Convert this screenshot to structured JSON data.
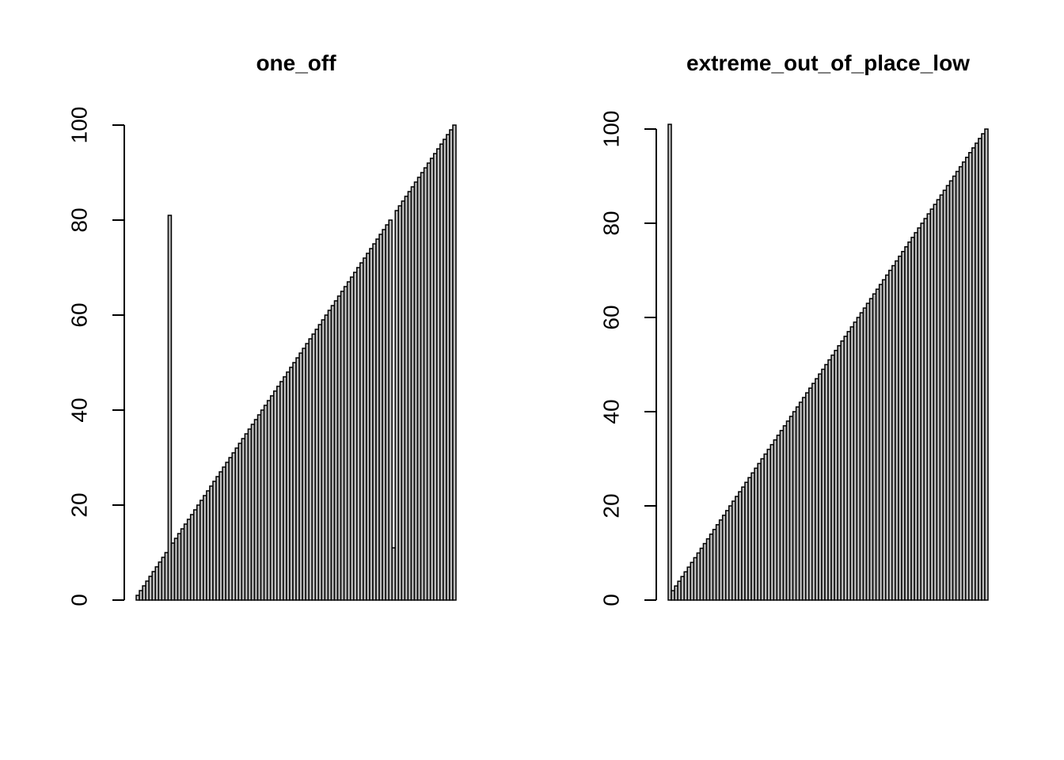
{
  "chart_data": [
    {
      "type": "bar",
      "title": "one_off",
      "xlabel": "",
      "ylabel": "",
      "ylim": [
        0,
        100
      ],
      "yticks": [
        0,
        20,
        40,
        60,
        80,
        100
      ],
      "bar_fill": "#bebebe",
      "bar_border": "#000000",
      "values": [
        1,
        2,
        3,
        4,
        5,
        6,
        7,
        8,
        9,
        10,
        81,
        12,
        13,
        14,
        15,
        16,
        17,
        18,
        19,
        20,
        21,
        22,
        23,
        24,
        25,
        26,
        27,
        28,
        29,
        30,
        31,
        32,
        33,
        34,
        35,
        36,
        37,
        38,
        39,
        40,
        41,
        42,
        43,
        44,
        45,
        46,
        47,
        48,
        49,
        50,
        51,
        52,
        53,
        54,
        55,
        56,
        57,
        58,
        59,
        60,
        61,
        62,
        63,
        64,
        65,
        66,
        67,
        68,
        69,
        70,
        71,
        72,
        73,
        74,
        75,
        76,
        77,
        78,
        79,
        80,
        11,
        82,
        83,
        84,
        85,
        86,
        87,
        88,
        89,
        90,
        91,
        92,
        93,
        94,
        95,
        96,
        97,
        98,
        99,
        100
      ]
    },
    {
      "type": "bar",
      "title": "extreme_out_of_place_low",
      "xlabel": "",
      "ylabel": "",
      "ylim": [
        0,
        100
      ],
      "yticks": [
        0,
        20,
        40,
        60,
        80,
        100
      ],
      "bar_fill": "#bebebe",
      "bar_border": "#000000",
      "values": [
        101,
        2,
        3,
        4,
        5,
        6,
        7,
        8,
        9,
        10,
        11,
        12,
        13,
        14,
        15,
        16,
        17,
        18,
        19,
        20,
        21,
        22,
        23,
        24,
        25,
        26,
        27,
        28,
        29,
        30,
        31,
        32,
        33,
        34,
        35,
        36,
        37,
        38,
        39,
        40,
        41,
        42,
        43,
        44,
        45,
        46,
        47,
        48,
        49,
        50,
        51,
        52,
        53,
        54,
        55,
        56,
        57,
        58,
        59,
        60,
        61,
        62,
        63,
        64,
        65,
        66,
        67,
        68,
        69,
        70,
        71,
        72,
        73,
        74,
        75,
        76,
        77,
        78,
        79,
        80,
        81,
        82,
        83,
        84,
        85,
        86,
        87,
        88,
        89,
        90,
        91,
        92,
        93,
        94,
        95,
        96,
        97,
        98,
        99,
        100
      ]
    }
  ]
}
